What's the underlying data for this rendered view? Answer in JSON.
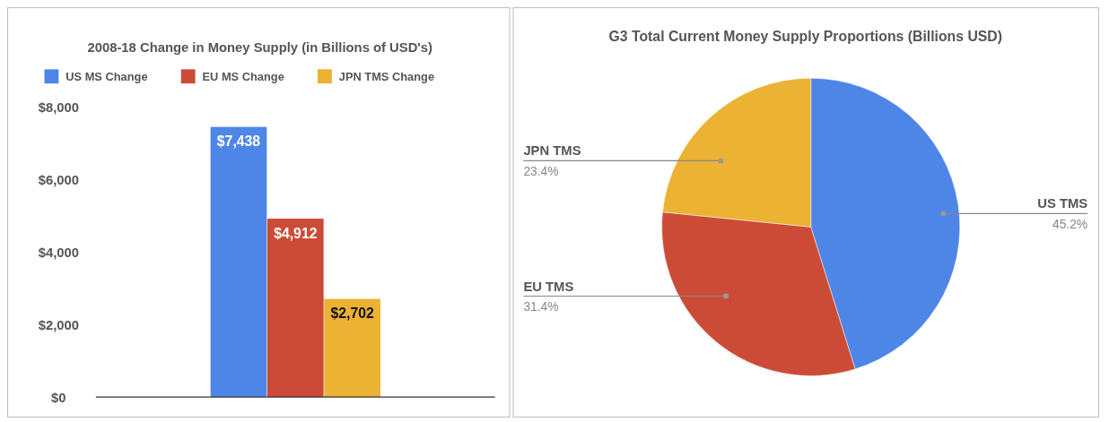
{
  "chart_data": [
    {
      "type": "bar",
      "title": "2008-18 Change in Money Supply (in Billions of USD's)",
      "categories": [
        null
      ],
      "series": [
        {
          "name": "US MS Change",
          "color": "#4e86e8",
          "values": [
            7438
          ],
          "value_labels": [
            "$7,438"
          ]
        },
        {
          "name": "EU MS Change",
          "color": "#cc4b37",
          "values": [
            4912
          ],
          "value_labels": [
            "$4,912"
          ]
        },
        {
          "name": "JPN TMS Change",
          "color": "#ebb233",
          "values": [
            2702
          ],
          "value_labels": [
            "$2,702"
          ]
        }
      ],
      "ylim": [
        0,
        8000
      ],
      "yticks": [
        {
          "value": 0,
          "label": "$0"
        },
        {
          "value": 2000,
          "label": "$2,000"
        },
        {
          "value": 4000,
          "label": "$4,000"
        },
        {
          "value": 6000,
          "label": "$6,000"
        },
        {
          "value": 8000,
          "label": "$8,000"
        }
      ],
      "grid": false,
      "legend": "top"
    },
    {
      "type": "pie",
      "title": "G3 Total Current Money Supply Proportions (Billions USD)",
      "categories": [
        "US TMS",
        "EU TMS",
        "JPN TMS"
      ],
      "values": [
        45.2,
        31.4,
        23.4
      ],
      "colors": [
        "#4e86e8",
        "#cc4b37",
        "#ebb233"
      ],
      "value_labels": [
        "45.2%",
        "31.4%",
        "23.4%"
      ]
    }
  ]
}
